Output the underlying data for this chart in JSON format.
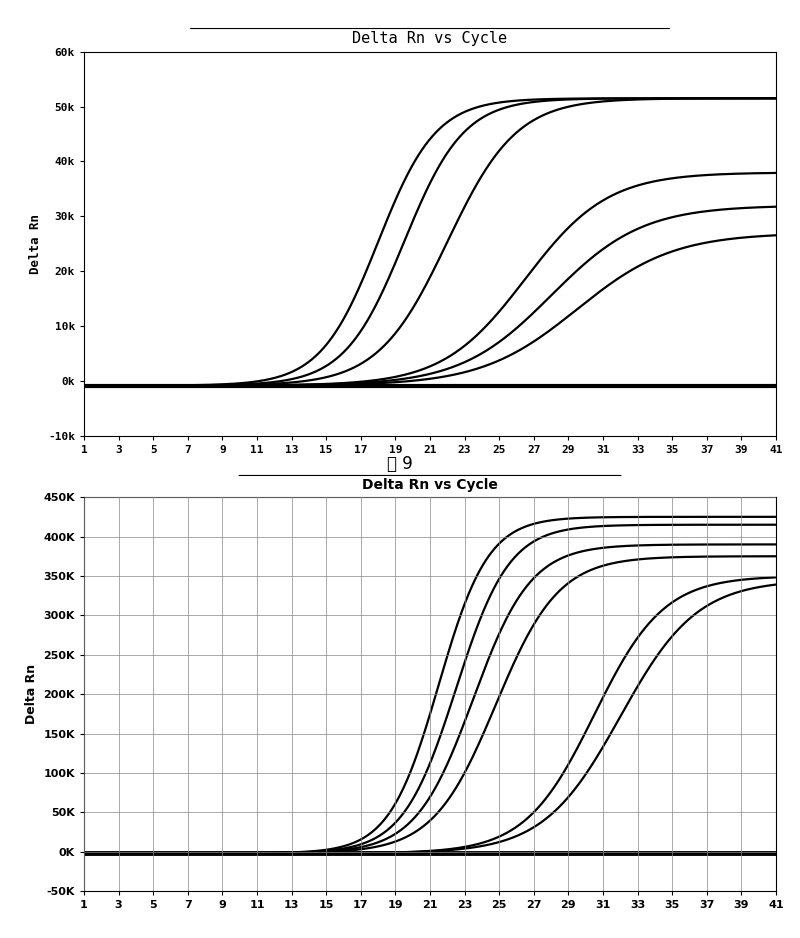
{
  "chart1": {
    "title": "Delta Rn vs Cycle",
    "ylabel": "Delta Rn",
    "xlabel_ticks": [
      1,
      3,
      5,
      7,
      9,
      11,
      13,
      15,
      17,
      19,
      21,
      23,
      25,
      27,
      29,
      31,
      33,
      35,
      37,
      39,
      41
    ],
    "ylim": [
      -10000,
      60000
    ],
    "yticks": [
      -10000,
      0,
      10000,
      20000,
      30000,
      40000,
      50000,
      60000
    ],
    "ytick_labels": [
      "-10k",
      "0k",
      "10k",
      "20k",
      "30k",
      "40k",
      "50k",
      "60k"
    ],
    "caption": "图 9",
    "curves": [
      {
        "midpoint": 18.0,
        "steepness": 0.6,
        "plateau": 51500,
        "baseline": -800
      },
      {
        "midpoint": 19.5,
        "steepness": 0.58,
        "plateau": 51500,
        "baseline": -800
      },
      {
        "midpoint": 22.0,
        "steepness": 0.5,
        "plateau": 51500,
        "baseline": -800
      },
      {
        "midpoint": 26.5,
        "steepness": 0.42,
        "plateau": 38000,
        "baseline": -800
      },
      {
        "midpoint": 28.0,
        "steepness": 0.38,
        "plateau": 32000,
        "baseline": -800
      },
      {
        "midpoint": 29.5,
        "steepness": 0.36,
        "plateau": 27000,
        "baseline": -800
      }
    ],
    "background_color": "#ffffff",
    "line_color": "#000000",
    "has_grid": false
  },
  "chart2": {
    "title": "Delta Rn vs Cycle",
    "ylabel": "Delta Rn",
    "xlabel_ticks": [
      1,
      3,
      5,
      7,
      9,
      11,
      13,
      15,
      17,
      19,
      21,
      23,
      25,
      27,
      29,
      31,
      33,
      35,
      37,
      39,
      41
    ],
    "ylim": [
      -50000,
      450000
    ],
    "yticks": [
      -50000,
      0,
      50000,
      100000,
      150000,
      200000,
      250000,
      300000,
      350000,
      400000,
      450000
    ],
    "ytick_labels": [
      "-50K",
      "0K",
      "50K",
      "100K",
      "150K",
      "200K",
      "250K",
      "300K",
      "350K",
      "400K",
      "450K"
    ],
    "curves": [
      {
        "midpoint": 21.5,
        "steepness": 0.7,
        "plateau": 425000,
        "baseline": -2000
      },
      {
        "midpoint": 22.5,
        "steepness": 0.65,
        "plateau": 415000,
        "baseline": -2000
      },
      {
        "midpoint": 23.5,
        "steepness": 0.6,
        "plateau": 390000,
        "baseline": -2000
      },
      {
        "midpoint": 24.8,
        "steepness": 0.55,
        "plateau": 375000,
        "baseline": -2000
      },
      {
        "midpoint": 30.5,
        "steepness": 0.5,
        "plateau": 350000,
        "baseline": -2000
      },
      {
        "midpoint": 32.0,
        "steepness": 0.45,
        "plateau": 345000,
        "baseline": -2000
      }
    ],
    "background_color": "#ffffff",
    "line_color": "#000000",
    "has_grid": true,
    "grid_color": "#888888"
  }
}
